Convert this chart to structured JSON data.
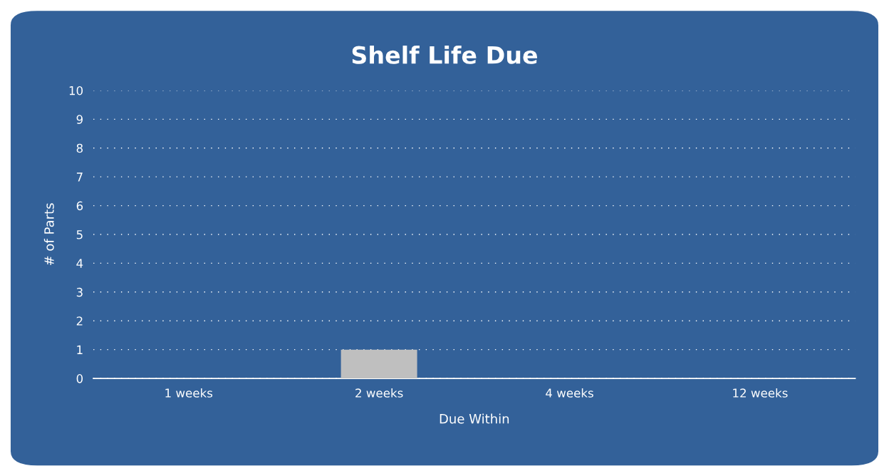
{
  "chart_data": {
    "type": "bar",
    "title": "Shelf Life Due",
    "xlabel": "Due Within",
    "ylabel": "# of Parts",
    "categories": [
      "1 weeks",
      "2 weeks",
      "4 weeks",
      "12 weeks"
    ],
    "values": [
      0,
      1,
      0,
      0
    ],
    "color": "#bfbfbf",
    "ylim": [
      0,
      10
    ],
    "yticks": [
      0,
      1,
      2,
      3,
      4,
      5,
      6,
      7,
      8,
      9,
      10
    ],
    "grid": "y"
  }
}
